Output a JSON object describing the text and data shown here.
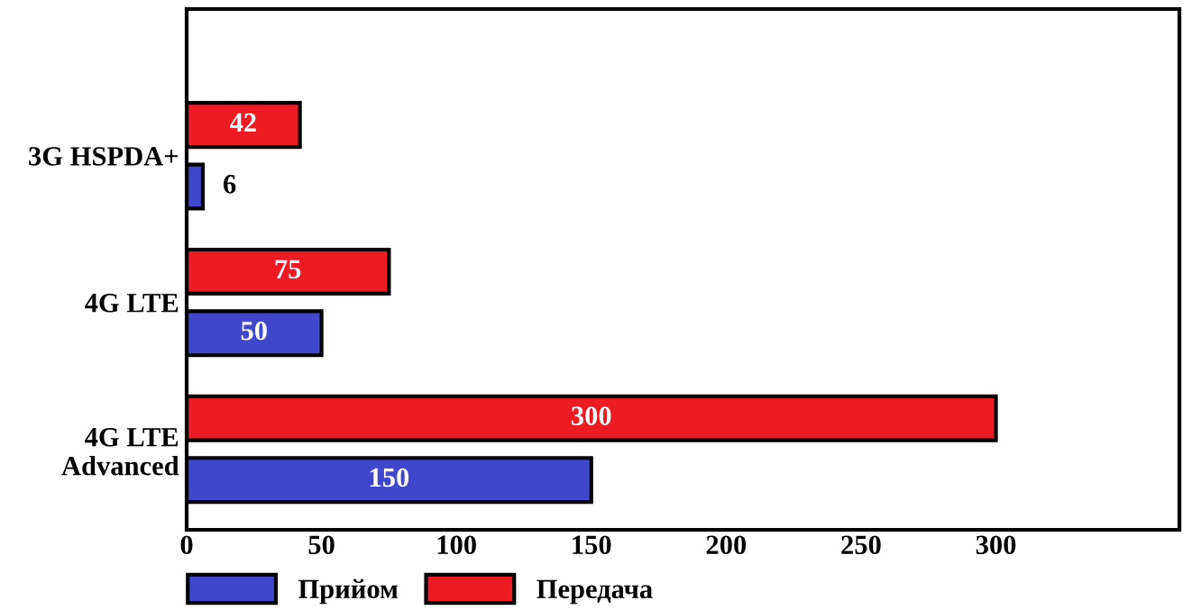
{
  "chart_data": {
    "type": "bar",
    "orientation": "horizontal",
    "categories": [
      "3G HSPDA+",
      "4G LTE",
      "4G LTE Advanced"
    ],
    "series": [
      {
        "name": "Прийом",
        "color": "#3f48cc",
        "values": [
          6,
          50,
          150
        ]
      },
      {
        "name": "Передача",
        "color": "#ed1c24",
        "values": [
          42,
          75,
          300
        ]
      }
    ],
    "xlim": [
      0,
      368
    ],
    "xticks": [
      0,
      50,
      100,
      150,
      200,
      250,
      300
    ],
    "data_labels": true,
    "legend": "bottom",
    "grid": false
  }
}
